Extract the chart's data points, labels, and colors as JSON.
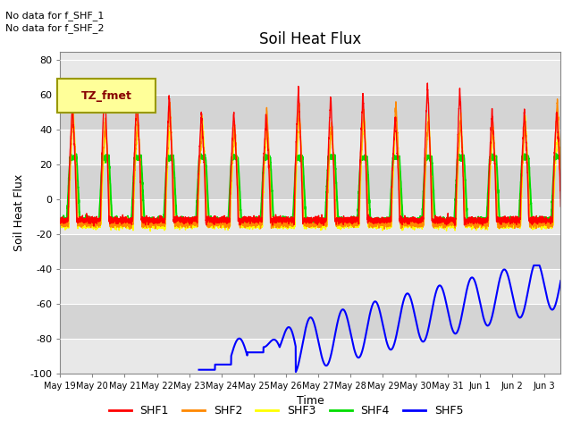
{
  "title": "Soil Heat Flux",
  "ylabel": "Soil Heat Flux",
  "xlabel": "Time",
  "xtick_labels": [
    "May 19",
    "May 20",
    "May 21",
    "May 22",
    "May 23",
    "May 24",
    "May 25",
    "May 26",
    "May 27",
    "May 28",
    "May 29",
    "May 30",
    "May 31",
    "Jun 1",
    "Jun 2",
    "Jun 3"
  ],
  "ylim": [
    -100,
    85
  ],
  "yticks": [
    -100,
    -80,
    -60,
    -40,
    -20,
    0,
    20,
    40,
    60,
    80
  ],
  "colors": {
    "SHF1": "#ff0000",
    "SHF2": "#ff8800",
    "SHF3": "#ffff00",
    "SHF4": "#00dd00",
    "SHF5": "#0000ff"
  },
  "annotation_text1": "No data for f_SHF_1",
  "annotation_text2": "No data for f_SHF_2",
  "legend_box_text": "TZ_fmet",
  "legend_box_facecolor": "#ffff99",
  "legend_box_edgecolor": "#999900",
  "bg_light": "#e8e8e8",
  "bg_dark": "#d4d4d4",
  "title_fontsize": 12,
  "axis_label_fontsize": 9,
  "tick_fontsize": 8,
  "legend_fontsize": 9
}
